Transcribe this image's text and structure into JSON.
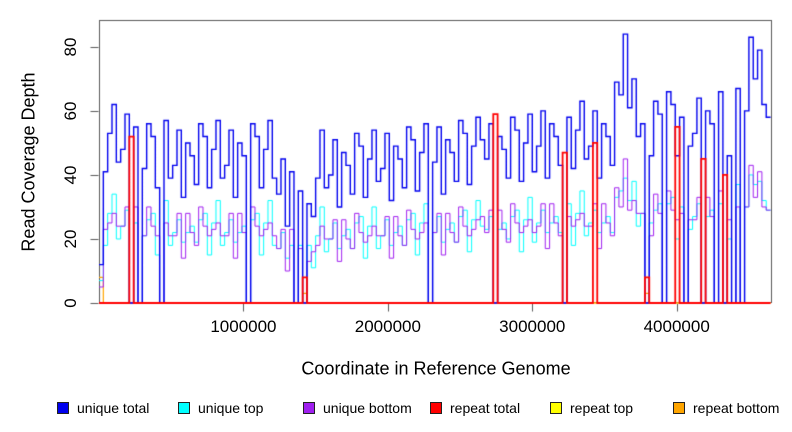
{
  "figure": {
    "background": "#ffffff",
    "axis_color": "#595959",
    "text_color": "#000000"
  },
  "chart_data": {
    "type": "line",
    "step": true,
    "title": "",
    "xlabel": "Coordinate in Reference Genome",
    "ylabel": "Read Coverage Depth",
    "xlim": [
      0,
      4653000
    ],
    "ylim": [
      0,
      88.4
    ],
    "xtick_values": [
      1000000,
      2000000,
      3000000,
      4000000
    ],
    "xtick_labels": [
      "1000000",
      "2000000",
      "3000000",
      "4000000"
    ],
    "ytick_values": [
      0,
      20,
      40,
      60,
      80
    ],
    "ytick_labels": [
      "0",
      "20",
      "40",
      "60",
      "80"
    ],
    "grid": false,
    "legend_position": "bottom",
    "x_start": 15000,
    "x_step": 30000,
    "n": 155,
    "series": [
      {
        "name": "unique total",
        "color": "#0000EE",
        "lw": 1.4,
        "z": 5,
        "values": [
          12,
          41,
          53,
          62,
          44,
          48,
          59,
          0,
          55,
          0,
          42,
          56,
          52,
          36,
          0,
          57,
          39,
          43,
          54,
          33,
          50,
          46,
          37,
          56,
          52,
          36,
          48,
          57,
          39,
          43,
          54,
          33,
          50,
          46,
          0,
          56,
          52,
          36,
          48,
          57,
          39,
          34,
          45,
          24,
          41,
          0,
          35,
          0,
          31,
          27,
          39,
          54,
          36,
          40,
          51,
          30,
          47,
          43,
          34,
          53,
          49,
          33,
          45,
          54,
          38,
          42,
          53,
          32,
          49,
          45,
          36,
          55,
          51,
          35,
          47,
          56,
          0,
          44,
          55,
          34,
          51,
          47,
          38,
          57,
          53,
          37,
          49,
          58,
          51,
          45,
          56,
          0,
          52,
          48,
          39,
          58,
          54,
          38,
          50,
          59,
          41,
          49,
          60,
          39,
          56,
          52,
          43,
          0,
          58,
          42,
          54,
          63,
          45,
          49,
          60,
          39,
          56,
          52,
          43,
          69,
          65,
          84,
          61,
          70,
          52,
          56,
          0,
          46,
          63,
          59,
          0,
          66,
          62,
          46,
          58,
          0,
          49,
          53,
          64,
          0,
          60,
          56,
          0,
          66,
          0,
          46,
          0,
          67,
          0,
          60,
          83,
          70,
          79,
          62,
          58
        ]
      },
      {
        "name": "unique top",
        "color": "#00FFFF",
        "lw": 1,
        "z": 3,
        "values": [
          7,
          18,
          28,
          34,
          20,
          24,
          29,
          0,
          25,
          0,
          21,
          26,
          28,
          15,
          0,
          32,
          18,
          22,
          26,
          19,
          22,
          24,
          19,
          26,
          28,
          15,
          25,
          32,
          18,
          22,
          26,
          19,
          22,
          24,
          0,
          26,
          28,
          15,
          25,
          32,
          18,
          17,
          22,
          14,
          18,
          0,
          18,
          0,
          18,
          11,
          21,
          30,
          16,
          20,
          25,
          17,
          21,
          23,
          17,
          25,
          27,
          14,
          24,
          30,
          17,
          21,
          26,
          18,
          22,
          24,
          18,
          26,
          28,
          15,
          25,
          31,
          0,
          22,
          27,
          19,
          23,
          25,
          19,
          27,
          29,
          16,
          26,
          32,
          24,
          23,
          27,
          0,
          23,
          25,
          20,
          27,
          29,
          16,
          26,
          33,
          19,
          25,
          29,
          22,
          25,
          27,
          22,
          0,
          31,
          18,
          28,
          35,
          21,
          25,
          29,
          22,
          25,
          27,
          22,
          33,
          35,
          39,
          32,
          38,
          24,
          28,
          0,
          25,
          29,
          31,
          0,
          31,
          33,
          20,
          30,
          0,
          23,
          27,
          31,
          0,
          27,
          29,
          0,
          31,
          0,
          20,
          0,
          37,
          0,
          30,
          40,
          37,
          38,
          32,
          29
        ]
      },
      {
        "name": "unique bottom",
        "color": "#A020F0",
        "lw": 1,
        "z": 4,
        "values": [
          5,
          23,
          25,
          28,
          24,
          24,
          30,
          0,
          30,
          0,
          21,
          30,
          24,
          21,
          0,
          25,
          21,
          21,
          28,
          14,
          28,
          22,
          18,
          30,
          24,
          21,
          23,
          25,
          21,
          21,
          28,
          14,
          28,
          22,
          0,
          30,
          24,
          21,
          23,
          25,
          21,
          17,
          23,
          10,
          23,
          0,
          17,
          0,
          13,
          16,
          18,
          24,
          20,
          20,
          26,
          13,
          26,
          20,
          17,
          28,
          22,
          19,
          21,
          24,
          21,
          21,
          27,
          14,
          27,
          21,
          18,
          29,
          23,
          20,
          22,
          25,
          0,
          22,
          28,
          15,
          28,
          22,
          19,
          30,
          24,
          21,
          23,
          26,
          27,
          22,
          29,
          0,
          29,
          23,
          19,
          31,
          25,
          22,
          24,
          26,
          22,
          24,
          31,
          17,
          31,
          25,
          21,
          0,
          27,
          24,
          26,
          28,
          24,
          24,
          31,
          17,
          31,
          25,
          21,
          36,
          30,
          45,
          29,
          32,
          28,
          28,
          0,
          21,
          34,
          28,
          0,
          35,
          29,
          26,
          28,
          0,
          26,
          26,
          33,
          0,
          33,
          27,
          0,
          35,
          0,
          26,
          0,
          30,
          0,
          30,
          43,
          33,
          41,
          30,
          29
        ]
      },
      {
        "name": "repeat total",
        "color": "#FF0000",
        "lw": 1.8,
        "z": 6,
        "default": 0,
        "points": {
          "7": 52,
          "47": 8,
          "91": 59,
          "107": 47,
          "114": 50,
          "126": 8,
          "133": 55,
          "139": 45,
          "144": 40
        }
      },
      {
        "name": "repeat top",
        "color": "#FFFF00",
        "lw": 1,
        "z": 1,
        "default": 0,
        "points": {}
      },
      {
        "name": "repeat bottom",
        "color": "#FFA500",
        "lw": 1.2,
        "z": 2,
        "default": 0,
        "points": {
          "0": 8,
          "47": 3,
          "126": 3
        }
      }
    ]
  }
}
